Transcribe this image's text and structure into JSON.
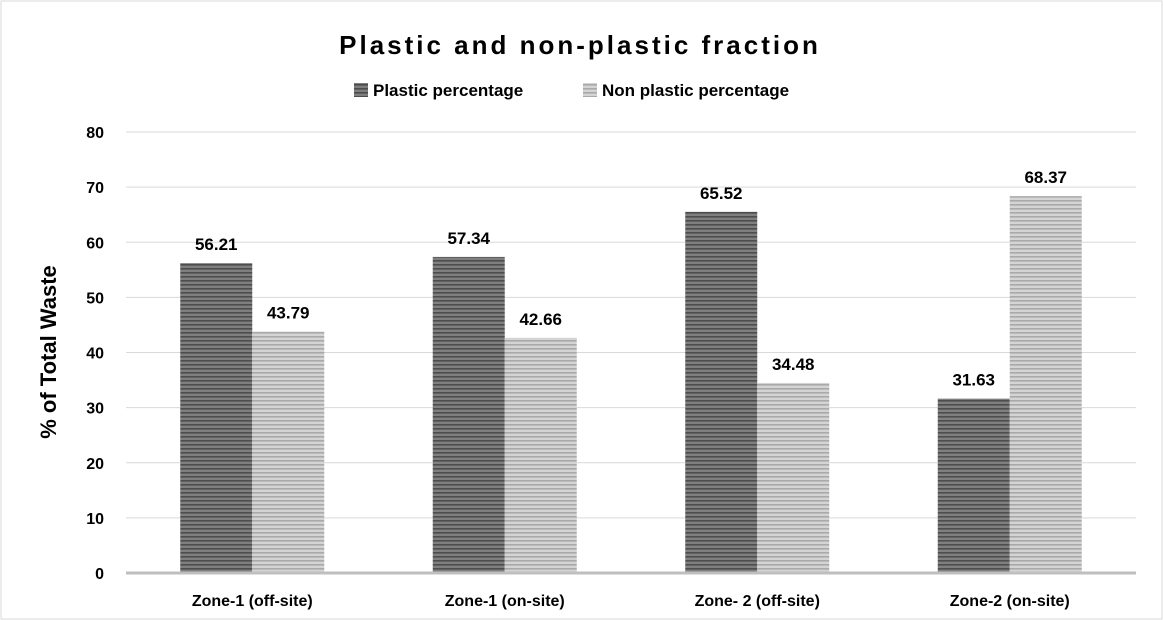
{
  "chart_data": {
    "type": "bar",
    "title": "Plastic and non-plastic fraction",
    "ylabel": "% of Total Waste",
    "xlabel": "",
    "categories": [
      "Zone-1 (off-site)",
      "Zone-1 (on-site)",
      "Zone- 2 (off-site)",
      "Zone-2 (on-site)"
    ],
    "series": [
      {
        "name": "Plastic percentage",
        "values": [
          56.21,
          57.34,
          65.52,
          31.63
        ],
        "color": "#7f7f7f",
        "stripe": "#4d4d4d"
      },
      {
        "name": "Non plastic percentage",
        "values": [
          43.79,
          42.66,
          34.48,
          68.37
        ],
        "color": "#d4d4d4",
        "stripe": "#a9a9a9"
      }
    ],
    "data_labels": [
      [
        "56.21",
        "57.34",
        "65.52",
        "31.63"
      ],
      [
        "43.79",
        "42.66",
        "34.48",
        "68.37"
      ]
    ],
    "ylim": [
      0,
      80
    ],
    "yticks": [
      0,
      10,
      20,
      30,
      40,
      50,
      60,
      70,
      80
    ],
    "ytick_labels": [
      "0",
      "10",
      "20",
      "30",
      "40",
      "50",
      "60",
      "70",
      "80"
    ],
    "grid": true,
    "legend_position": "top"
  }
}
